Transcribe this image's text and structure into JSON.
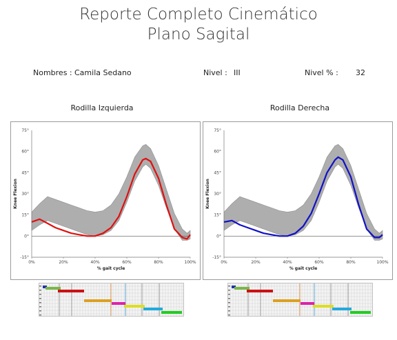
{
  "header": {
    "title_line1": "Reporte Completo Cinemático",
    "title_line2": "Plano Sagital"
  },
  "info": {
    "name_label": "Nombres :",
    "name_value": "Camila Sedano",
    "level_label": "Nivel :",
    "level_value": "III",
    "level_pct_label": "Nivel % :",
    "level_pct_value": "32"
  },
  "colors": {
    "left": "#e01010",
    "right": "#1010c8",
    "band": "#b4b4b4",
    "zero_line": "#555555"
  },
  "chart_data": [
    {
      "type": "line",
      "title": "Rodilla Izquierda",
      "xlabel": "% gait cycle",
      "ylabel": "Knee Flexion",
      "xlim": [
        0,
        100
      ],
      "ylim": [
        -15,
        75
      ],
      "x_ticks": [
        "0%",
        "20%",
        "40%",
        "60%",
        "80%",
        "100%"
      ],
      "y_ticks": [
        "-15°",
        "0°",
        "15°",
        "30°",
        "45°",
        "60°",
        "75°"
      ],
      "grid": false,
      "x": [
        0,
        5,
        10,
        15,
        20,
        25,
        30,
        35,
        40,
        45,
        50,
        55,
        60,
        65,
        70,
        72,
        75,
        80,
        85,
        90,
        95,
        98,
        100
      ],
      "normal_upper": [
        17,
        23,
        28,
        26,
        24,
        22,
        20,
        18,
        17,
        18,
        22,
        30,
        42,
        56,
        64,
        65,
        62,
        50,
        33,
        16,
        5,
        2,
        4
      ],
      "normal_lower": [
        4,
        8,
        11,
        9,
        7,
        5,
        3,
        1,
        0,
        1,
        4,
        11,
        24,
        39,
        49,
        51,
        48,
        36,
        20,
        5,
        -3,
        -3,
        -2
      ],
      "series": [
        {
          "values": [
            10,
            12,
            9,
            6,
            4,
            2,
            1,
            0,
            0,
            2,
            6,
            14,
            28,
            44,
            54,
            55,
            53,
            41,
            22,
            5,
            -1,
            -2,
            1
          ]
        }
      ]
    },
    {
      "type": "line",
      "title": "Rodilla Derecha",
      "xlabel": "% gait cycle",
      "ylabel": "Knee Flexion",
      "xlim": [
        0,
        100
      ],
      "ylim": [
        -15,
        75
      ],
      "x_ticks": [
        "0%",
        "20%",
        "40%",
        "60%",
        "80%",
        "100%"
      ],
      "y_ticks": [
        "-15°",
        "0°",
        "15°",
        "30°",
        "45°",
        "60°",
        "75°"
      ],
      "grid": false,
      "x": [
        0,
        5,
        10,
        15,
        20,
        25,
        30,
        35,
        40,
        45,
        50,
        55,
        60,
        65,
        70,
        72,
        75,
        80,
        85,
        90,
        95,
        98,
        100
      ],
      "normal_upper": [
        17,
        23,
        28,
        26,
        24,
        22,
        20,
        18,
        17,
        18,
        22,
        30,
        42,
        56,
        64,
        65,
        62,
        50,
        33,
        16,
        5,
        2,
        4
      ],
      "normal_lower": [
        4,
        8,
        11,
        9,
        7,
        5,
        3,
        1,
        0,
        1,
        4,
        11,
        24,
        39,
        49,
        51,
        48,
        36,
        20,
        5,
        -3,
        -3,
        -2
      ],
      "series": [
        {
          "values": [
            10,
            11,
            8,
            6,
            4,
            2,
            1,
            0,
            0,
            2,
            7,
            16,
            30,
            45,
            54,
            56,
            54,
            42,
            22,
            5,
            -1,
            -1,
            1
          ]
        }
      ]
    }
  ],
  "phase_bars": [
    "#2233aa",
    "#7ab648",
    "#cc1111",
    "#dda020",
    "#dd22aa",
    "#dddd22",
    "#22aadd",
    "#22cc22"
  ]
}
